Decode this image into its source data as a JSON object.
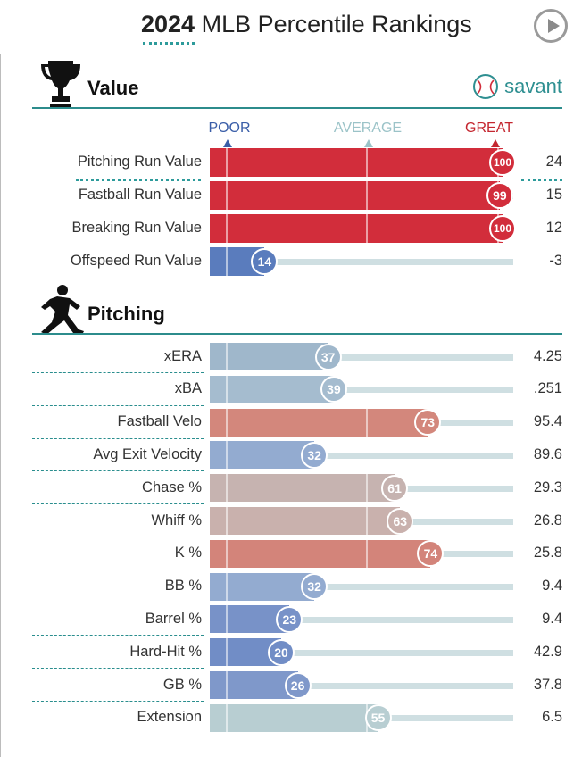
{
  "header": {
    "year": "2024",
    "title": "MLB Percentile Rankings"
  },
  "brand": {
    "name": "savant"
  },
  "colors": {
    "great": "#d22d3b",
    "poor": "#3a5ea8",
    "average_label": "#9bc3c8",
    "track": "#cfdfe2",
    "rule": "#2c8c8c"
  },
  "icons": {
    "value_section": "trophy-icon",
    "pitching_section": "pitcher-icon",
    "brand": "baseball-icon",
    "play": "play-icon"
  },
  "scale": {
    "poor": "POOR",
    "average": "AVERAGE",
    "great": "GREAT"
  },
  "chart_data": {
    "type": "bar",
    "orientation": "horizontal",
    "xlim": [
      0,
      100
    ],
    "sections": [
      {
        "title": "Value",
        "rows": [
          {
            "label": "Pitching Run Value",
            "percentile": 100,
            "stat": "24",
            "color": "#d22d3b"
          },
          {
            "label": "Fastball Run Value",
            "percentile": 99,
            "stat": "15",
            "color": "#d22d3b"
          },
          {
            "label": "Breaking Run Value",
            "percentile": 100,
            "stat": "12",
            "color": "#d22d3b"
          },
          {
            "label": "Offspeed Run Value",
            "percentile": 14,
            "stat": "-3",
            "color": "#5a7cbd"
          }
        ]
      },
      {
        "title": "Pitching",
        "rows": [
          {
            "label": "xERA",
            "percentile": 37,
            "stat": "4.25",
            "color": "#9fb7cb"
          },
          {
            "label": "xBA",
            "percentile": 39,
            "stat": ".251",
            "color": "#a5bccf"
          },
          {
            "label": "Fastball Velo",
            "percentile": 73,
            "stat": "95.4",
            "color": "#d3877c"
          },
          {
            "label": "Avg Exit Velocity",
            "percentile": 32,
            "stat": "89.6",
            "color": "#93abd0"
          },
          {
            "label": "Chase %",
            "percentile": 61,
            "stat": "29.3",
            "color": "#c6b3b0"
          },
          {
            "label": "Whiff %",
            "percentile": 63,
            "stat": "26.8",
            "color": "#c9b1ad"
          },
          {
            "label": "K %",
            "percentile": 74,
            "stat": "25.8",
            "color": "#d3847a"
          },
          {
            "label": "BB %",
            "percentile": 32,
            "stat": "9.4",
            "color": "#93abd0"
          },
          {
            "label": "Barrel %",
            "percentile": 23,
            "stat": "9.4",
            "color": "#7892c8"
          },
          {
            "label": "Hard-Hit %",
            "percentile": 20,
            "stat": "42.9",
            "color": "#718dc6"
          },
          {
            "label": "GB %",
            "percentile": 26,
            "stat": "37.8",
            "color": "#7f98ca"
          },
          {
            "label": "Extension",
            "percentile": 55,
            "stat": "6.5",
            "color": "#b8ced2"
          }
        ]
      }
    ]
  }
}
